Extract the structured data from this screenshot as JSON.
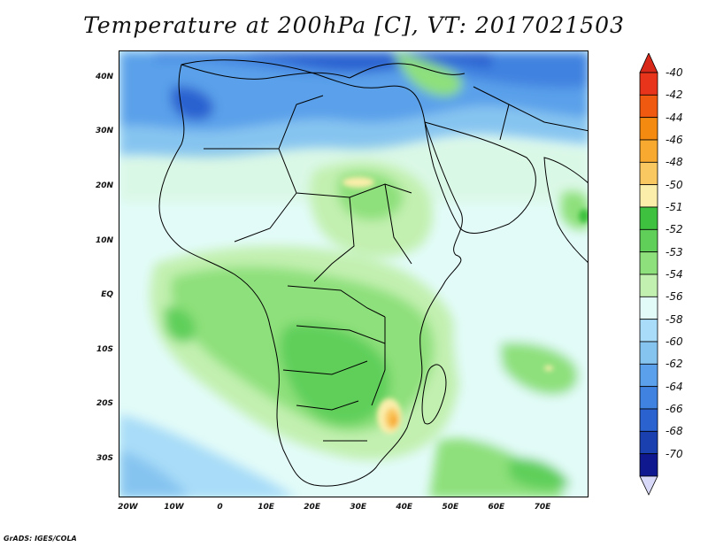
{
  "title": "Temperature at 200hPa [C], VT: 2017021503",
  "credit": "GrADS: IGES/COLA",
  "lat_ticks": [
    {
      "lat": 40,
      "label": "40N"
    },
    {
      "lat": 30,
      "label": "30N"
    },
    {
      "lat": 20,
      "label": "20N"
    },
    {
      "lat": 10,
      "label": "10N"
    },
    {
      "lat": 0,
      "label": "EQ"
    },
    {
      "lat": -10,
      "label": "10S"
    },
    {
      "lat": -20,
      "label": "20S"
    },
    {
      "lat": -30,
      "label": "30S"
    }
  ],
  "lon_ticks": [
    {
      "lon": -20,
      "label": "20W"
    },
    {
      "lon": -10,
      "label": "10W"
    },
    {
      "lon": 0,
      "label": "0"
    },
    {
      "lon": 10,
      "label": "10E"
    },
    {
      "lon": 20,
      "label": "20E"
    },
    {
      "lon": 30,
      "label": "30E"
    },
    {
      "lon": 40,
      "label": "40E"
    },
    {
      "lon": 50,
      "label": "50E"
    },
    {
      "lon": 60,
      "label": "60E"
    },
    {
      "lon": 70,
      "label": "70E"
    }
  ],
  "extent": {
    "lon_min": -22,
    "lon_max": 80,
    "lat_min": -37,
    "lat_max": 45
  },
  "colorbar": {
    "levels": [
      "-40",
      "-42",
      "-44",
      "-46",
      "-48",
      "-50",
      "-51",
      "-52",
      "-53",
      "-54",
      "-56",
      "-58",
      "-60",
      "-62",
      "-64",
      "-66",
      "-68",
      "-70"
    ],
    "colors": [
      "#e8341a",
      "#f05a10",
      "#f58a10",
      "#f8aa30",
      "#f9c860",
      "#faeeaa",
      "#3ec13e",
      "#5fcf5a",
      "#8ee07c",
      "#c2f0b0",
      "#e2fbf8",
      "#a8dcf8",
      "#86c4f0",
      "#5aa0ea",
      "#3f82e0",
      "#2a62d0",
      "#1a40b0",
      "#101890"
    ],
    "top_arrow_color": "#d8281a",
    "bottom_arrow_color": "#d8d8f8"
  }
}
